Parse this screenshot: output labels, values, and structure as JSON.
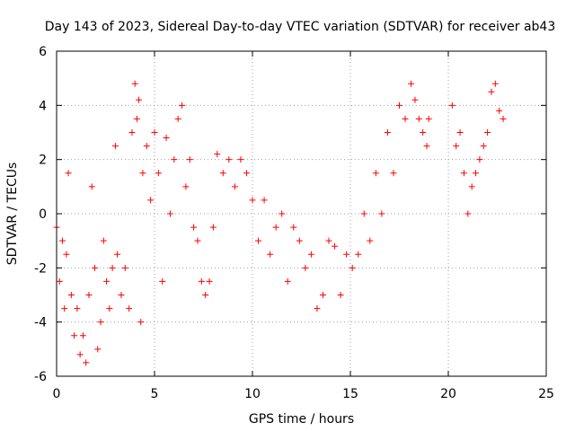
{
  "chart_data": {
    "type": "scatter",
    "title": "Day 143 of 2023, Sidereal Day-to-day VTEC variation (SDTVAR) for receiver ab43",
    "xlabel": "GPS time / hours",
    "ylabel": "SDTVAR / TECUs",
    "xlim": [
      0,
      25
    ],
    "ylim": [
      -6,
      6
    ],
    "xticks": [
      0,
      5,
      10,
      15,
      20,
      25
    ],
    "yticks": [
      -6,
      -4,
      -2,
      0,
      2,
      4,
      6
    ],
    "grid": true,
    "marker": "+",
    "colors": {
      "series": "#ff0000",
      "grid": "#a0a0a0",
      "axis": "#000000"
    },
    "series": [
      {
        "name": "SDTVAR",
        "x": [
          0.0,
          0.15,
          0.3,
          0.4,
          0.5,
          0.6,
          0.75,
          0.9,
          1.05,
          1.2,
          1.35,
          1.5,
          1.65,
          1.8,
          1.95,
          2.1,
          2.25,
          2.4,
          2.55,
          2.7,
          2.85,
          3.0,
          3.1,
          3.3,
          3.5,
          3.7,
          3.85,
          4.0,
          4.1,
          4.2,
          4.3,
          4.4,
          4.6,
          4.8,
          5.0,
          5.2,
          5.4,
          5.6,
          5.8,
          6.0,
          6.2,
          6.4,
          6.6,
          6.8,
          7.0,
          7.2,
          7.4,
          7.6,
          7.8,
          8.0,
          8.2,
          8.5,
          8.8,
          9.1,
          9.4,
          9.7,
          10.0,
          10.3,
          10.6,
          10.9,
          11.2,
          11.5,
          11.8,
          12.1,
          12.4,
          12.7,
          13.0,
          13.3,
          13.6,
          13.9,
          14.2,
          14.5,
          14.8,
          15.1,
          15.4,
          15.7,
          16.0,
          16.3,
          16.6,
          16.9,
          17.2,
          17.5,
          17.8,
          18.1,
          18.3,
          18.5,
          18.7,
          18.9,
          19.0,
          20.2,
          20.4,
          20.6,
          20.8,
          21.0,
          21.2,
          21.4,
          21.6,
          21.8,
          22.0,
          22.2,
          22.4,
          22.6,
          22.8
        ],
        "y": [
          -0.5,
          -2.5,
          -1.0,
          -3.5,
          -1.5,
          1.5,
          -3.0,
          -4.5,
          -3.5,
          -5.2,
          -4.5,
          -5.5,
          -3.0,
          1.0,
          -2.0,
          -5.0,
          -4.0,
          -1.0,
          -2.5,
          -3.5,
          -2.0,
          2.5,
          -1.5,
          -3.0,
          -2.0,
          -3.5,
          3.0,
          4.8,
          3.5,
          4.2,
          -4.0,
          1.5,
          2.5,
          0.5,
          3.0,
          1.5,
          -2.5,
          2.8,
          0.0,
          2.0,
          3.5,
          4.0,
          1.0,
          2.0,
          -0.5,
          -1.0,
          -2.5,
          -3.0,
          -2.5,
          -0.5,
          2.2,
          1.5,
          2.0,
          1.0,
          2.0,
          1.5,
          0.5,
          -1.0,
          0.5,
          -1.5,
          -0.5,
          0.0,
          -2.5,
          -0.5,
          -1.0,
          -2.0,
          -1.5,
          -3.5,
          -3.0,
          -1.0,
          -1.2,
          -3.0,
          -1.5,
          -2.0,
          -1.5,
          0.0,
          -1.0,
          1.5,
          0.0,
          3.0,
          1.5,
          4.0,
          3.5,
          4.8,
          4.2,
          3.5,
          3.0,
          2.5,
          3.5,
          4.0,
          2.5,
          3.0,
          1.5,
          0.0,
          1.0,
          1.5,
          2.0,
          2.5,
          3.0,
          4.5,
          4.8,
          3.8,
          3.5
        ]
      }
    ]
  }
}
